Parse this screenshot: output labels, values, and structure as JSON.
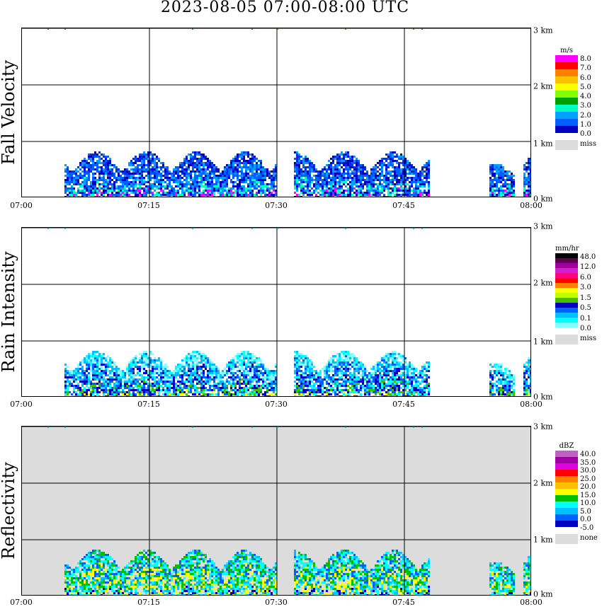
{
  "title": "2023-08-05   07:00-08:00 UTC",
  "x_ticks": [
    "07:00",
    "07:15",
    "07:30",
    "07:45",
    "08:00"
  ],
  "height_ticks": [
    "3 km",
    "2 km",
    "1 km",
    "0 km"
  ],
  "panels": [
    {
      "label": "Fall Velocity",
      "background": "#ffffff",
      "legend": {
        "unit": "m/s",
        "colors": [
          "#ff00ff",
          "#ff0000",
          "#ff8000",
          "#ffc000",
          "#ffff00",
          "#80ff00",
          "#00a000",
          "#00ffc0",
          "#00a0ff",
          "#0060ff",
          "#0000c0"
        ],
        "levels": [
          "8.0",
          "7.0",
          "6.0",
          "5.0",
          "4.0",
          "3.0",
          "2.0",
          "1.0",
          "0.0"
        ],
        "missing_label": "miss",
        "missing_color": "#dcdcdc"
      }
    },
    {
      "label": "Rain Intensity",
      "background": "#ffffff",
      "legend": {
        "unit": "mm/hr",
        "colors": [
          "#000000",
          "#600050",
          "#a000a0",
          "#d020d0",
          "#ff0080",
          "#ff0000",
          "#ff8000",
          "#ffff00",
          "#c0ff00",
          "#40c000",
          "#0000c0",
          "#0060ff",
          "#00c0ff",
          "#00ffff",
          "#80ffff"
        ],
        "levels": [
          "48.0",
          "12.0",
          "6.0",
          "3.0",
          "1.5",
          "0.5",
          "0.1",
          "0.0"
        ],
        "missing_label": "miss",
        "missing_color": "#dcdcdc"
      }
    },
    {
      "label": "Reflectivity",
      "background": "#dcdcdc",
      "legend": {
        "unit": "dBZ",
        "colors": [
          "#c060c0",
          "#a000a0",
          "#e000e0",
          "#ff0000",
          "#ff8000",
          "#ffc000",
          "#ffff00",
          "#00c000",
          "#00ffff",
          "#00c0ff",
          "#0060ff",
          "#0000c0"
        ],
        "levels": [
          "40.0",
          "35.0",
          "30.0",
          "25.0",
          "20.0",
          "15.0",
          "10.0",
          "5.0",
          "0.0",
          "-5.0"
        ],
        "missing_label": "none",
        "missing_color": "#dcdcdc"
      }
    }
  ],
  "chart_data": {
    "type": "heatmap",
    "title": "2023-08-05   07:00-08:00 UTC",
    "x_range": [
      "07:00",
      "08:00"
    ],
    "y_range_km": [
      0,
      3
    ],
    "grid": true,
    "variables": [
      "Fall Velocity",
      "Rain Intensity",
      "Reflectivity"
    ],
    "echo_segments": [
      {
        "start": "07:05",
        "end": "07:30",
        "top_km": 0.8
      },
      {
        "start": "07:32",
        "end": "07:48",
        "top_km": 0.8
      },
      {
        "start": "07:55",
        "end": "07:58",
        "top_km": 0.6
      },
      {
        "start": "07:59",
        "end": "08:00",
        "top_km": 0.8
      }
    ]
  }
}
